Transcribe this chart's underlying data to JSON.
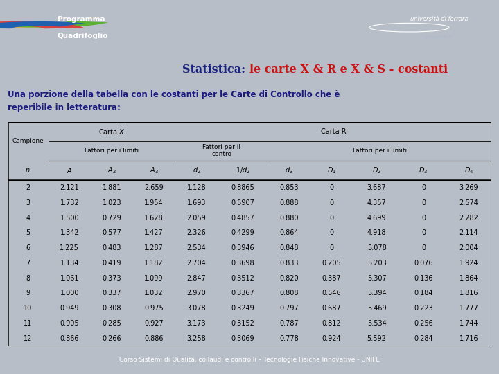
{
  "title_black": "Statistica: ",
  "title_red": "le carte X & R e X & S - costanti",
  "subtitle": "Una porzione della tabella con le costanti per le Carte di Controllo che è\nreperibile in letteratura:",
  "footer": "Corso Sistemi di Qualità, collaudi e controlli – Tecnologie Fisiche Innovative - UNIFE",
  "header_bg": "#1b3a5e",
  "body_bg": "#b8bec8",
  "table_bg": "#ffffff",
  "rows": [
    [
      2,
      2.121,
      1.881,
      2.659,
      1.128,
      0.8865,
      0.853,
      0,
      3.687,
      0,
      3.269
    ],
    [
      3,
      1.732,
      1.023,
      1.954,
      1.693,
      0.5907,
      0.888,
      0,
      4.357,
      0,
      2.574
    ],
    [
      4,
      1.5,
      0.729,
      1.628,
      2.059,
      0.4857,
      0.88,
      0,
      4.699,
      0,
      2.282
    ],
    [
      5,
      1.342,
      0.577,
      1.427,
      2.326,
      0.4299,
      0.864,
      0,
      4.918,
      0,
      2.114
    ],
    [
      6,
      1.225,
      0.483,
      1.287,
      2.534,
      0.3946,
      0.848,
      0,
      5.078,
      0,
      2.004
    ],
    [
      7,
      1.134,
      0.419,
      1.182,
      2.704,
      0.3698,
      0.833,
      0.205,
      5.203,
      0.076,
      1.924
    ],
    [
      8,
      1.061,
      0.373,
      1.099,
      2.847,
      0.3512,
      0.82,
      0.387,
      5.307,
      0.136,
      1.864
    ],
    [
      9,
      1,
      0.337,
      1.032,
      2.97,
      0.3367,
      0.808,
      0.546,
      5.394,
      0.184,
      1.816
    ],
    [
      10,
      0.949,
      0.308,
      0.975,
      3.078,
      0.3249,
      0.797,
      0.687,
      5.469,
      0.223,
      1.777
    ],
    [
      11,
      0.905,
      0.285,
      0.927,
      3.173,
      0.3152,
      0.787,
      0.812,
      5.534,
      0.256,
      1.744
    ],
    [
      12,
      0.866,
      0.266,
      0.886,
      3.258,
      0.3069,
      0.778,
      0.924,
      5.592,
      0.284,
      1.716
    ]
  ]
}
